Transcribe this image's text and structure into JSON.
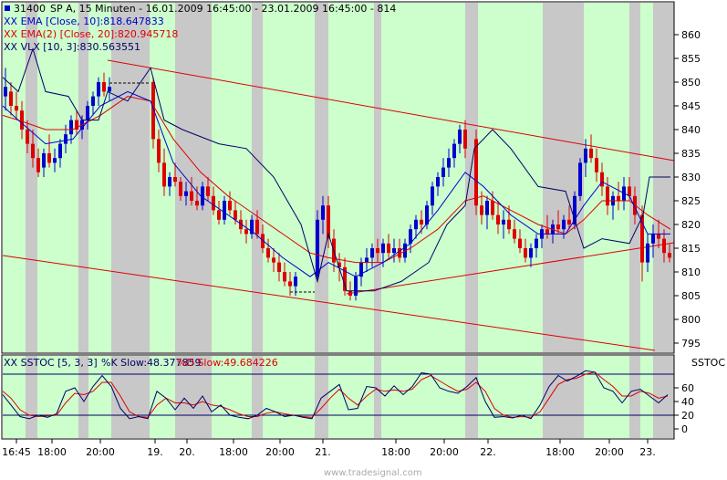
{
  "header": {
    "symbol": "31400",
    "title": "SP A, 15 Minuten - 16.01.2009 16:45:00 - 23.01.2009 16:45:00 - 814"
  },
  "legend": {
    "ema10": {
      "text": "XX EMA [Close, 10]:818.647833",
      "color": "#0000cc"
    },
    "ema20": {
      "text": "XX EMA(2) [Close, 20]:820.945718",
      "color": "#dd0000"
    },
    "vlx": {
      "text": "XX VLX [10, 3]:830.563551",
      "color": "#000066"
    }
  },
  "oscillator": {
    "title_prefix": "XX SSTOC [5, 3, 3]",
    "k_text": "%K Slow:48.377859",
    "d_text": "%D Slow:49.684226",
    "k_color": "#000066",
    "d_color": "#dd0000",
    "label": "SSTOC",
    "upper_level": 80,
    "lower_level": 20,
    "ticks": [
      "60",
      "40",
      "20",
      "0"
    ]
  },
  "watermark": "www.tradesignal.com",
  "chart_data": [
    {
      "type": "candlestick",
      "y_axis_ticks": [
        860,
        855,
        850,
        845,
        840,
        835,
        830,
        825,
        820,
        815,
        810,
        805,
        800,
        795
      ],
      "ylim": [
        792.5,
        865
      ],
      "x_tick_labels": [
        "16:45",
        "18:00",
        "20:00",
        "19.",
        "20.",
        "18:00",
        "20:00",
        "21.",
        "18:00",
        "20:00",
        "22.",
        "18:00",
        "20:00",
        "23."
      ],
      "colors": {
        "up": "#0000cc",
        "down": "#dd0000",
        "session_bg": "#ccffcc",
        "offhours_bg": "#c8c8c8"
      },
      "series": [
        {
          "name": "XX EMA [Close, 10]",
          "color": "#0000cc"
        },
        {
          "name": "XX EMA(2) [Close, 20]",
          "color": "#dd0000"
        },
        {
          "name": "XX VLX [10, 3]",
          "color": "#000066"
        }
      ]
    },
    {
      "type": "line",
      "name": "SSTOC",
      "ylim": [
        0,
        100
      ],
      "levels": [
        80,
        20
      ],
      "series": [
        {
          "name": "%K Slow",
          "color": "#000066"
        },
        {
          "name": "%D Slow",
          "color": "#dd0000"
        }
      ]
    }
  ]
}
